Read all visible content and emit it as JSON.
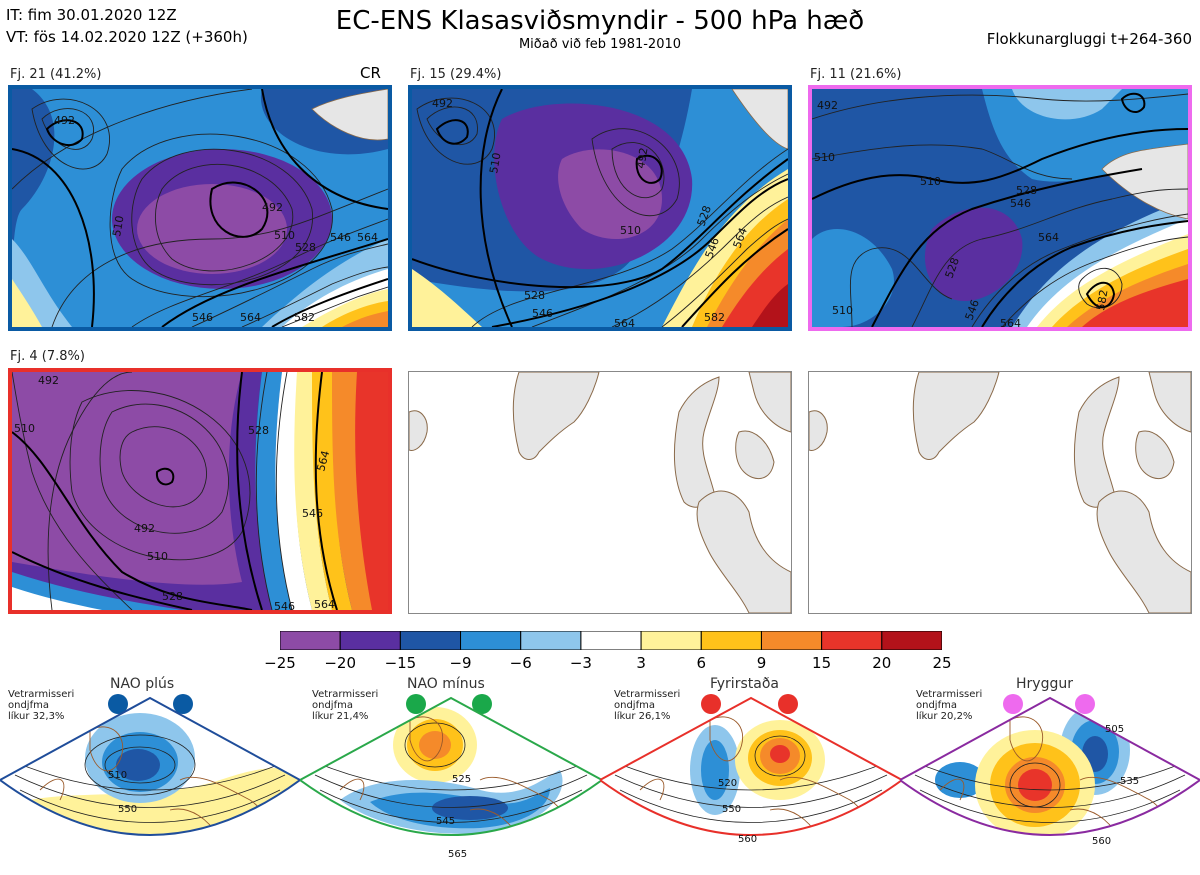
{
  "header": {
    "it_line": "IT: fim 30.01.2020 12Z",
    "vt_line": "VT: fös 14.02.2020 12Z  (+360h)",
    "title": "EC-ENS Klasasviðsmyndir - 500 hPa hæð",
    "subtitle": "Miðað við feb 1981-2010",
    "window": "Flokkunargluggi t+264-360"
  },
  "colors": {
    "panel_blue": "#0a5aa3",
    "panel_magenta": "#ee6aee",
    "panel_red": "#e8302a",
    "land": "#e6e6e6",
    "coast": "#8a6a4a"
  },
  "panels": [
    {
      "label": "Fj. 21 (41.2%)",
      "tag": "CR",
      "contours": [
        {
          "t": "492"
        },
        {
          "t": "492"
        },
        {
          "t": "510"
        },
        {
          "t": "510"
        },
        {
          "t": "528"
        },
        {
          "t": "546"
        },
        {
          "t": "564"
        },
        {
          "t": "546"
        },
        {
          "t": "564"
        },
        {
          "t": "582"
        }
      ]
    },
    {
      "label": "Fj. 15 (29.4%)",
      "tag": "",
      "contours": [
        {
          "t": "492"
        },
        {
          "t": "492"
        },
        {
          "t": "510"
        },
        {
          "t": "510"
        },
        {
          "t": "528"
        },
        {
          "t": "528"
        },
        {
          "t": "546"
        },
        {
          "t": "546"
        },
        {
          "t": "564"
        },
        {
          "t": "564"
        },
        {
          "t": "582"
        }
      ]
    },
    {
      "label": "Fj. 11 (21.6%)",
      "tag": "",
      "contours": [
        {
          "t": "492"
        },
        {
          "t": "510"
        },
        {
          "t": "510"
        },
        {
          "t": "528"
        },
        {
          "t": "546"
        },
        {
          "t": "564"
        },
        {
          "t": "528"
        },
        {
          "t": "546"
        },
        {
          "t": "582"
        },
        {
          "t": "510"
        },
        {
          "t": "564"
        }
      ]
    },
    {
      "label": "Fj. 4 (7.8%)",
      "tag": "",
      "contours": [
        {
          "t": "492"
        },
        {
          "t": "492"
        },
        {
          "t": "510"
        },
        {
          "t": "510"
        },
        {
          "t": "528"
        },
        {
          "t": "528"
        },
        {
          "t": "546"
        },
        {
          "t": "564"
        },
        {
          "t": "546"
        },
        {
          "t": "564"
        }
      ]
    }
  ],
  "colorbar": {
    "ticks": [
      "−25",
      "−20",
      "−15",
      "−9",
      "−6",
      "−3",
      "3",
      "6",
      "9",
      "15",
      "20",
      "25"
    ],
    "colors": [
      "#8d4ba6",
      "#5a2fa0",
      "#1f56a5",
      "#2d8fd6",
      "#8ec6ec",
      "#ffffff",
      "#fff29a",
      "#ffc21a",
      "#f58a2a",
      "#e8342a",
      "#b3121a"
    ]
  },
  "regimes": [
    {
      "name": "NAO plús",
      "line1": "Vetrarmisseri",
      "line2": "ondjfma",
      "line3": "líkur 32,3%",
      "dot": "#0a5aa3",
      "frame": "#1f4d9a",
      "contours": [
        {
          "t": "510"
        },
        {
          "t": "550"
        }
      ]
    },
    {
      "name": "NAO mínus",
      "line1": "Vetrarmisseri",
      "line2": "ondjfma",
      "line3": "líkur 21,4%",
      "dot": "#1aa84a",
      "frame": "#2aa84a",
      "contours": [
        {
          "t": "525"
        },
        {
          "t": "545"
        },
        {
          "t": "565"
        }
      ]
    },
    {
      "name": "Fyrirstaða",
      "line1": "Vetrarmisseri",
      "line2": "ondjfma",
      "line3": "líkur 26,1%",
      "dot": "#e8302a",
      "frame": "#e8302a",
      "contours": [
        {
          "t": "520"
        },
        {
          "t": "550"
        },
        {
          "t": "560"
        }
      ]
    },
    {
      "name": "Hryggur",
      "line1": "Vetrarmisseri",
      "line2": "ondjfma",
      "line3": "líkur 20,2%",
      "dot": "#ee6aee",
      "frame": "#8a2aa0",
      "contours": [
        {
          "t": "505"
        },
        {
          "t": "535"
        },
        {
          "t": "560"
        }
      ]
    }
  ]
}
